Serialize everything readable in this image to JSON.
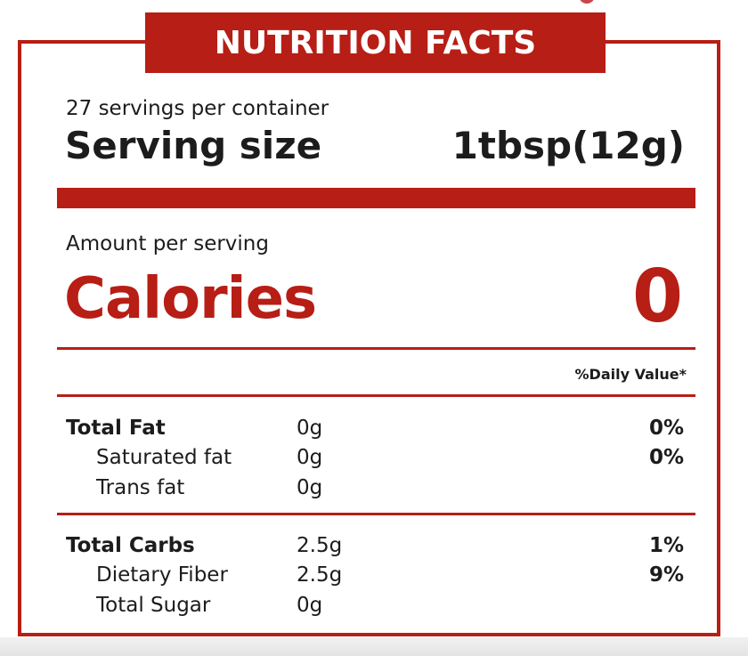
{
  "label": {
    "title": "NUTRITION FACTS",
    "servings_per_container": "27 servings per container",
    "serving_size_label": "Serving size",
    "serving_size_value": "1tbsp(12g)",
    "amount_per_serving": "Amount per serving",
    "calories_label": "Calories",
    "calories_value": "0",
    "daily_value_header": "%Daily Value*",
    "nutrients": [
      {
        "name": "Total Fat",
        "amount": "0g",
        "daily_value": "0%"
      },
      {
        "name": "Saturated fat",
        "amount": "0g",
        "daily_value": "0%"
      },
      {
        "name": "Trans fat",
        "amount": "0g",
        "daily_value": ""
      },
      {
        "name": "Total Carbs",
        "amount": "2.5g",
        "daily_value": "1%"
      },
      {
        "name": "Dietary Fiber",
        "amount": "2.5g",
        "daily_value": "9%"
      },
      {
        "name": "Total Sugar",
        "amount": "0g",
        "daily_value": ""
      }
    ]
  },
  "colors": {
    "accent": "#b71e15",
    "text": "#1c1c1c",
    "background": "#ffffff"
  }
}
